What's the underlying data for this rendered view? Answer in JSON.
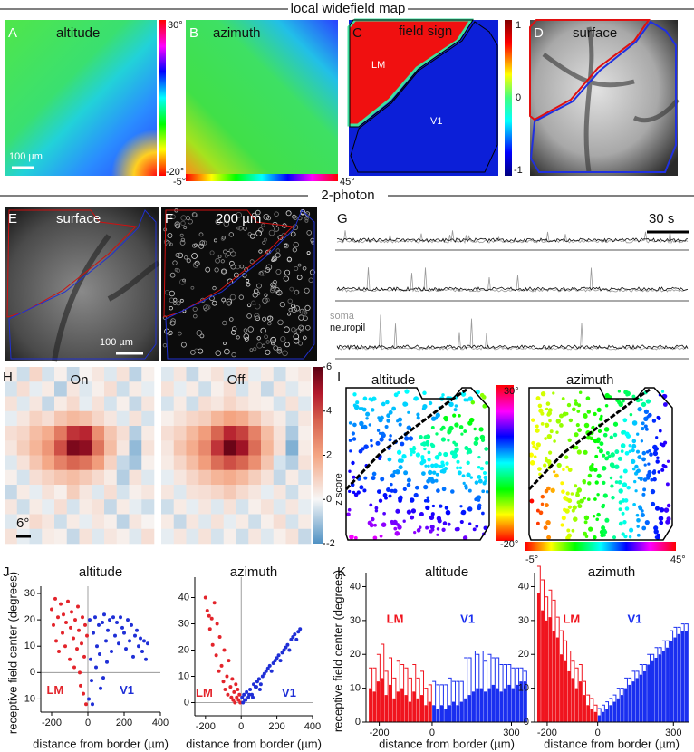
{
  "sections": {
    "widefield": "local widefield map",
    "two_photon": "2-photon"
  },
  "widefield": {
    "altitude": {
      "letter": "A",
      "title": "altitude",
      "scale_bar": "100 µm",
      "colorbar": [
        "30°",
        "-20°"
      ]
    },
    "azimuth": {
      "letter": "B",
      "title": "azimuth",
      "colorbar": [
        "-5°",
        "45°"
      ]
    },
    "field_sign": {
      "letter": "C",
      "title": "field sign",
      "areas": [
        "LM",
        "V1"
      ],
      "colorbar": [
        "1",
        "0",
        "-1"
      ]
    },
    "surface": {
      "letter": "D",
      "title": "surface"
    }
  },
  "two_photon": {
    "surface": {
      "letter": "E",
      "title": "surface",
      "scale_bar": "100 µm"
    },
    "rois": {
      "letter": "F",
      "title": "200 µm"
    },
    "traces": {
      "letter": "G",
      "scale_bar": "30 s",
      "legend": [
        "soma",
        "neuropil"
      ]
    }
  },
  "heatmap": {
    "letter": "H",
    "scale_bar": "6°",
    "colorbar_label": "z score",
    "clim": [
      -2,
      6
    ],
    "cticks": [
      -2,
      0,
      2,
      4,
      6
    ],
    "maps": [
      {
        "title": "On",
        "z": [
          [
            0.3,
            -0.5,
            0.8,
            -0.4,
            0.2,
            -0.6,
            0.1,
            0.4,
            -0.3,
            0.5,
            -0.7,
            0.2
          ],
          [
            -0.4,
            0.6,
            -0.2,
            0.3,
            -0.8,
            0.4,
            -0.3,
            0.2,
            0.6,
            -0.5,
            0.3,
            -0.2
          ],
          [
            0.5,
            -0.3,
            0.4,
            -0.6,
            0.3,
            0.7,
            -0.2,
            0.5,
            -0.4,
            0.2,
            -0.6,
            0.4
          ],
          [
            -0.2,
            0.4,
            0.9,
            0.6,
            1.2,
            1.5,
            1.3,
            0.8,
            0.4,
            -0.3,
            0.5,
            -0.4
          ],
          [
            0.6,
            0.8,
            1.4,
            1.8,
            3.2,
            4.6,
            4.8,
            2.6,
            1.2,
            0.6,
            -0.8,
            0.3
          ],
          [
            0.4,
            1.0,
            1.6,
            2.4,
            4.2,
            5.6,
            5.4,
            3.4,
            1.4,
            0.4,
            -1.2,
            0.5
          ],
          [
            -0.3,
            0.5,
            1.2,
            1.9,
            3.0,
            3.8,
            3.4,
            2.2,
            0.9,
            -0.6,
            -1.0,
            0.2
          ],
          [
            0.2,
            -0.4,
            0.6,
            0.9,
            1.2,
            1.4,
            1.1,
            0.7,
            0.3,
            -0.8,
            0.5,
            -0.3
          ],
          [
            -0.6,
            0.3,
            -0.2,
            0.5,
            0.2,
            1.0,
            0.4,
            -0.3,
            0.6,
            -0.4,
            0.2,
            0.4
          ],
          [
            0.4,
            -0.5,
            0.3,
            -0.2,
            0.6,
            -0.4,
            0.3,
            0.5,
            -0.6,
            0.3,
            -0.2,
            -0.5
          ],
          [
            -0.3,
            0.2,
            0.7,
            0.4,
            -0.5,
            0.3,
            -0.2,
            0.4,
            0.2,
            -0.7,
            0.4,
            0.1
          ],
          [
            0.5,
            -0.2,
            -0.4,
            0.3,
            0.2,
            -0.6,
            0.5,
            -0.3,
            0.4,
            0.2,
            -0.3,
            0.6
          ]
        ]
      },
      {
        "title": "Off",
        "z": [
          [
            -0.3,
            0.4,
            -0.6,
            0.2,
            0.5,
            -0.3,
            0.6,
            -0.2,
            0.3,
            -0.5,
            0.2,
            0.4
          ],
          [
            0.5,
            -0.2,
            0.3,
            -0.5,
            0.2,
            0.6,
            -0.4,
            0.3,
            -0.6,
            0.4,
            -0.3,
            0.2
          ],
          [
            -0.4,
            0.3,
            -0.5,
            0.6,
            0.4,
            0.8,
            0.5,
            0.3,
            0.2,
            -0.4,
            0.5,
            -0.3
          ],
          [
            0.2,
            0.5,
            0.8,
            1.0,
            1.6,
            2.0,
            1.8,
            1.2,
            0.6,
            0.3,
            -0.5,
            0.4
          ],
          [
            0.6,
            0.9,
            1.5,
            2.2,
            3.8,
            4.8,
            4.4,
            3.0,
            1.4,
            0.5,
            -0.9,
            0.2
          ],
          [
            0.4,
            1.2,
            1.8,
            2.8,
            4.6,
            5.8,
            5.2,
            3.6,
            1.6,
            0.6,
            -1.4,
            0.3
          ],
          [
            0.3,
            0.8,
            1.4,
            2.2,
            3.6,
            4.2,
            3.8,
            2.6,
            1.2,
            -0.4,
            -0.8,
            0.5
          ],
          [
            -0.2,
            0.4,
            0.8,
            1.2,
            1.6,
            1.8,
            1.5,
            1.0,
            0.5,
            -0.6,
            0.3,
            -0.4
          ],
          [
            0.4,
            -0.3,
            0.5,
            0.6,
            0.8,
            1.1,
            0.7,
            0.4,
            -0.2,
            0.4,
            -0.5,
            0.2
          ],
          [
            -0.5,
            0.3,
            -0.2,
            0.4,
            -0.3,
            0.5,
            -0.4,
            0.2,
            0.5,
            -0.3,
            0.4,
            -0.2
          ],
          [
            0.3,
            -0.6,
            0.4,
            -0.3,
            0.5,
            -0.2,
            0.3,
            -0.5,
            0.2,
            0.6,
            -0.4,
            0.3
          ],
          [
            -0.2,
            0.4,
            -0.3,
            0.5,
            -0.4,
            0.2,
            -0.5,
            0.4,
            -0.3,
            0.2,
            0.5,
            -0.6
          ]
        ]
      }
    ]
  },
  "retinotopy": {
    "letter": "I",
    "titles": [
      "altitude",
      "azimuth"
    ],
    "colorbar": [
      "30°",
      "-20°"
    ],
    "h_colorbar": [
      "-5°",
      "45°"
    ]
  },
  "letters": [
    "J",
    "K"
  ],
  "chart_data": [
    {
      "type": "scatter",
      "title": "altitude",
      "x_label": "distance from border (µm)",
      "y_label": "receptive field center (degrees)",
      "xlim": [
        -260,
        400
      ],
      "ylim": [
        -15,
        30
      ],
      "xticks": [
        -200,
        0,
        200,
        400
      ],
      "yticks": [
        -10,
        0,
        10,
        20,
        30
      ],
      "series": [
        {
          "name": "LM",
          "color": "#e3242b",
          "x": [
            -200,
            -190,
            -180,
            -175,
            -165,
            -160,
            -150,
            -140,
            -135,
            -125,
            -120,
            -110,
            -100,
            -95,
            -90,
            -80,
            -75,
            -70,
            -60,
            -55,
            -50,
            -45,
            -40,
            -35,
            -30,
            -25,
            -20,
            -15,
            -10,
            -5
          ],
          "values": [
            24,
            18,
            28,
            12,
            21,
            8,
            26,
            15,
            22,
            10,
            19,
            27,
            5,
            17,
            23,
            13,
            2,
            20,
            9,
            25,
            16,
            0,
            -5,
            11,
            21,
            -8,
            6,
            18,
            -12,
            14
          ]
        },
        {
          "name": "V1",
          "color": "#1f2fd6",
          "x": [
            5,
            10,
            15,
            20,
            30,
            40,
            50,
            60,
            70,
            80,
            90,
            100,
            110,
            120,
            130,
            140,
            150,
            160,
            170,
            180,
            190,
            200,
            210,
            220,
            230,
            240,
            250,
            260,
            270,
            280,
            290,
            300,
            310,
            320,
            330,
            25,
            45,
            65,
            85,
            105
          ],
          "values": [
            -10,
            20,
            5,
            -3,
            15,
            21,
            10,
            18,
            -6,
            19,
            22,
            12,
            16,
            20,
            8,
            21,
            14,
            19,
            11,
            21,
            17,
            15,
            9,
            20,
            12,
            18,
            6,
            14,
            16,
            10,
            13,
            8,
            12,
            5,
            11,
            -12,
            2,
            7,
            -2,
            4
          ]
        }
      ]
    },
    {
      "type": "scatter",
      "title": "azimuth",
      "x_label": "distance from border (µm)",
      "xlim": [
        -260,
        400
      ],
      "ylim": [
        -5,
        45
      ],
      "xticks": [
        -200,
        0,
        200,
        400
      ],
      "yticks": [
        0,
        10,
        20,
        30,
        40
      ],
      "series": [
        {
          "name": "LM",
          "color": "#e3242b",
          "x": [
            -200,
            -190,
            -180,
            -175,
            -165,
            -160,
            -150,
            -140,
            -135,
            -125,
            -120,
            -110,
            -100,
            -95,
            -90,
            -80,
            -75,
            -70,
            -60,
            -55,
            -50,
            -45,
            -40,
            -35,
            -30,
            -25,
            -20,
            -15,
            -10,
            -5
          ],
          "values": [
            40,
            35,
            33,
            28,
            32,
            22,
            38,
            18,
            30,
            12,
            25,
            14,
            8,
            20,
            5,
            10,
            3,
            16,
            6,
            2,
            9,
            1,
            4,
            0,
            7,
            2,
            5,
            1,
            3,
            0
          ]
        },
        {
          "name": "V1",
          "color": "#1f2fd6",
          "x": [
            5,
            10,
            15,
            20,
            30,
            40,
            50,
            60,
            70,
            80,
            90,
            100,
            110,
            120,
            130,
            140,
            150,
            160,
            170,
            180,
            190,
            200,
            210,
            220,
            230,
            240,
            250,
            260,
            270,
            280,
            290,
            300,
            310,
            320,
            330,
            25,
            45,
            65,
            85,
            105
          ],
          "values": [
            2,
            0,
            3,
            1,
            4,
            2,
            5,
            3,
            7,
            6,
            8,
            9,
            7,
            10,
            11,
            12,
            13,
            14,
            12,
            15,
            16,
            17,
            18,
            16,
            19,
            20,
            21,
            22,
            20,
            24,
            25,
            26,
            24,
            27,
            28,
            1,
            3,
            2,
            6,
            5
          ]
        }
      ]
    },
    {
      "type": "bar",
      "title": "altitude",
      "x_label": "distance from border (µm)",
      "y_label": "receptive field center (degrees)",
      "xlim": [
        -250,
        360
      ],
      "ylim": [
        0,
        42
      ],
      "xticks": [
        -200,
        0,
        300
      ],
      "yticks": [
        0,
        10,
        20,
        30,
        40
      ],
      "series": [
        {
          "name": "LM",
          "color": "#f0141e",
          "x": [
            -232.5,
            -217.5,
            -202.5,
            -187.5,
            -172.5,
            -157.5,
            -142.5,
            -127.5,
            -112.5,
            -97.5,
            -82.5,
            -67.5,
            -52.5,
            -37.5,
            -22.5,
            -7.5
          ],
          "values": [
            10,
            9,
            12,
            13,
            8,
            11,
            7,
            9,
            10,
            8,
            6,
            9,
            7,
            8,
            5,
            6
          ],
          "errors": [
            6,
            7,
            8,
            10,
            7,
            8,
            6,
            9,
            7,
            8,
            7,
            8,
            6,
            7,
            5,
            5
          ]
        },
        {
          "name": "V1",
          "color": "#1a2ff0",
          "x": [
            7.5,
            22.5,
            37.5,
            52.5,
            67.5,
            82.5,
            97.5,
            112.5,
            127.5,
            142.5,
            157.5,
            172.5,
            187.5,
            202.5,
            217.5,
            232.5,
            247.5,
            262.5,
            277.5,
            292.5,
            307.5,
            322.5,
            337.5,
            352.5
          ],
          "values": [
            5,
            4,
            5,
            4,
            5,
            6,
            5,
            6,
            7,
            8,
            9,
            10,
            10,
            9,
            10,
            11,
            10,
            9,
            10,
            11,
            10,
            11,
            12,
            12
          ],
          "errors": [
            7,
            7,
            6,
            7,
            8,
            6,
            7,
            6,
            12,
            11,
            12,
            10,
            11,
            9,
            10,
            8,
            9,
            8,
            7,
            6,
            6,
            5,
            4,
            3
          ]
        }
      ]
    },
    {
      "type": "bar",
      "title": "azimuth",
      "x_label": "distance from border (µm)",
      "xlim": [
        -250,
        360
      ],
      "ylim": [
        0,
        42
      ],
      "xticks": [
        -200,
        0,
        300
      ],
      "yticks": [
        0,
        10,
        20,
        30,
        40
      ],
      "series": [
        {
          "name": "LM",
          "color": "#f0141e",
          "x": [
            -232.5,
            -217.5,
            -202.5,
            -187.5,
            -172.5,
            -157.5,
            -142.5,
            -127.5,
            -112.5,
            -97.5,
            -82.5,
            -67.5,
            -52.5,
            -37.5,
            -22.5,
            -7.5
          ],
          "values": [
            38,
            33,
            30,
            31,
            27,
            25,
            20,
            18,
            15,
            13,
            10,
            12,
            8,
            5,
            4,
            3
          ],
          "errors": [
            8,
            9,
            7,
            8,
            9,
            6,
            7,
            6,
            6,
            5,
            6,
            5,
            4,
            3,
            3,
            2
          ]
        },
        {
          "name": "V1",
          "color": "#1a2ff0",
          "x": [
            7.5,
            22.5,
            37.5,
            52.5,
            67.5,
            82.5,
            97.5,
            112.5,
            127.5,
            142.5,
            157.5,
            172.5,
            187.5,
            202.5,
            217.5,
            232.5,
            247.5,
            262.5,
            277.5,
            292.5,
            307.5,
            322.5,
            337.5,
            352.5
          ],
          "values": [
            2,
            3,
            4,
            5,
            6,
            7,
            8,
            10,
            11,
            12,
            13,
            14,
            15,
            17,
            18,
            19,
            20,
            21,
            22,
            24,
            25,
            26,
            27,
            27
          ],
          "errors": [
            2,
            2,
            2,
            2,
            2,
            3,
            2,
            3,
            2,
            3,
            2,
            3,
            2,
            3,
            2,
            3,
            2,
            3,
            2,
            3,
            3,
            2,
            2,
            2
          ]
        }
      ]
    }
  ]
}
